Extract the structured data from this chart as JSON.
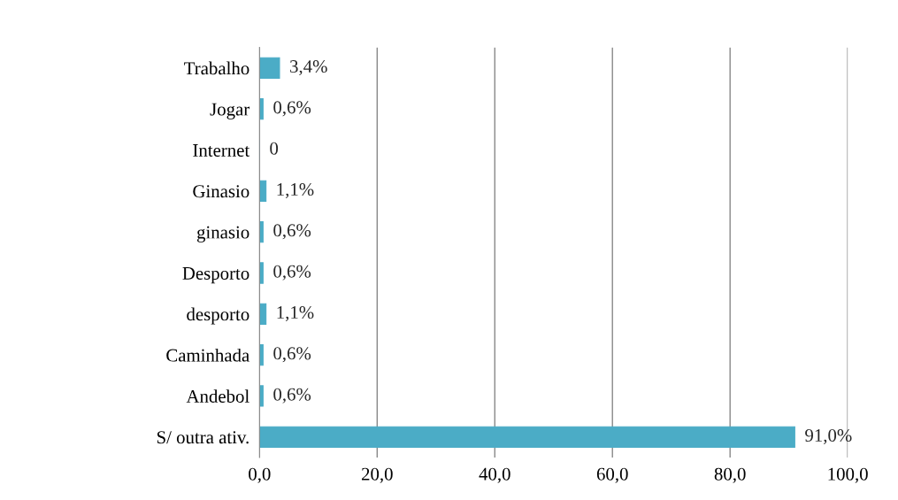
{
  "chart_data": {
    "type": "bar",
    "orientation": "horizontal",
    "categories": [
      "Trabalho",
      "Jogar",
      "Internet",
      "Ginasio",
      "ginasio",
      "Desporto",
      "desporto",
      "Caminhada",
      "Andebol",
      "S/ outra ativ."
    ],
    "values": [
      3.4,
      0.6,
      0,
      1.1,
      0.6,
      0.6,
      1.1,
      0.6,
      0.6,
      91.0
    ],
    "value_labels": [
      "3,4%",
      "0,6%",
      "0",
      "1,1%",
      "0,6%",
      "0,6%",
      "1,1%",
      "0,6%",
      "0,6%",
      "91,0%"
    ],
    "color": "#4bacc6",
    "xlim": [
      0,
      100
    ],
    "xticks": [
      {
        "value": 0,
        "label": "0,0"
      },
      {
        "value": 20,
        "label": "20,0"
      },
      {
        "value": 40,
        "label": "40,0"
      },
      {
        "value": 60,
        "label": "60,0"
      },
      {
        "value": 80,
        "label": "80,0"
      },
      {
        "value": 100,
        "label": "100,0"
      }
    ],
    "grid": "x",
    "legend": false
  }
}
